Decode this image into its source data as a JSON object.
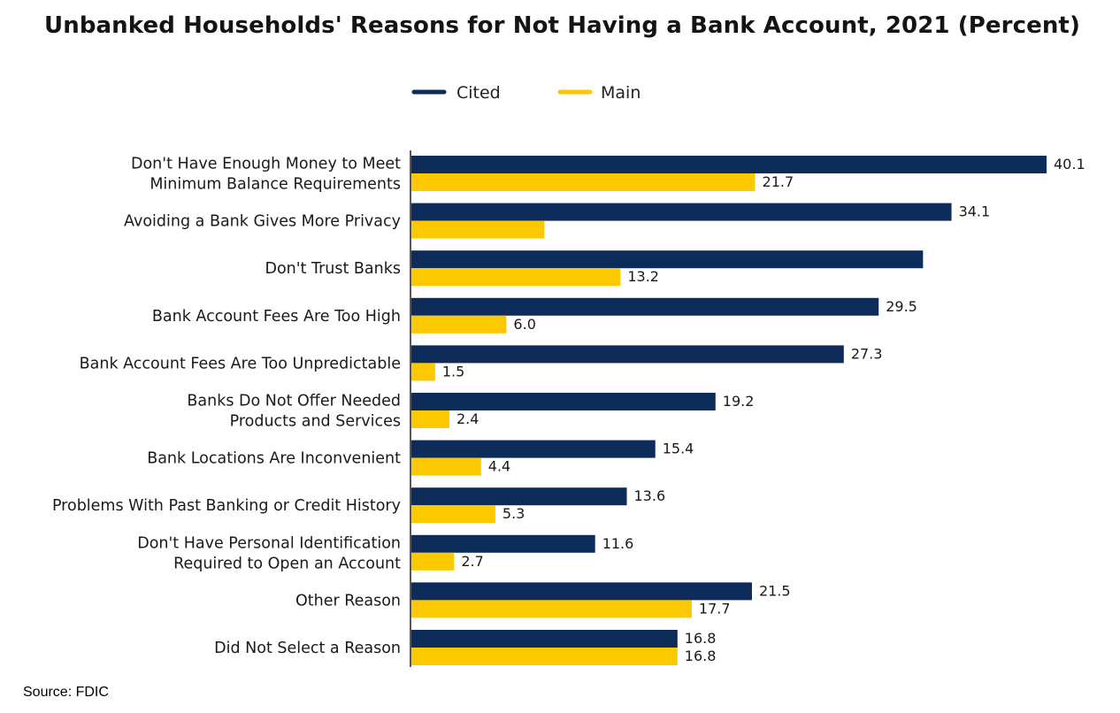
{
  "chart_data": {
    "type": "bar",
    "orientation": "horizontal",
    "title": "Unbanked Households' Reasons for Not Having a Bank Account, 2021 (Percent)",
    "categories": [
      [
        "Don't Have Enough Money to Meet",
        "Minimum Balance Requirements"
      ],
      [
        "Avoiding a Bank Gives More Privacy"
      ],
      [
        "Don't Trust Banks"
      ],
      [
        "Bank Account Fees Are Too High"
      ],
      [
        "Bank Account Fees Are Too Unpredictable"
      ],
      [
        "Banks Do Not Offer Needed",
        "Products and Services"
      ],
      [
        "Bank Locations Are Inconvenient"
      ],
      [
        "Problems With Past Banking or Credit History"
      ],
      [
        "Don't Have Personal Identification",
        "Required to Open an Account"
      ],
      [
        "Other Reason"
      ],
      [
        "Did Not Select a Reason"
      ]
    ],
    "series": [
      {
        "name": "Cited",
        "color": "#0d2c5a",
        "values": [
          40.1,
          34.1,
          32.3,
          29.5,
          27.3,
          19.2,
          15.4,
          13.6,
          11.6,
          21.5,
          16.8
        ],
        "labels": [
          "40.1",
          "34.1",
          "",
          "29.5",
          "27.3",
          "19.2",
          "15.4",
          "13.6",
          "11.6",
          "21.5",
          "16.8"
        ]
      },
      {
        "name": "Main",
        "color": "#fcc800",
        "values": [
          21.7,
          8.4,
          13.2,
          6.0,
          1.5,
          2.4,
          4.4,
          5.3,
          2.7,
          17.7,
          16.8
        ],
        "labels": [
          "21.7",
          "",
          "13.2",
          "6.0",
          "1.5",
          "2.4",
          "4.4",
          "5.3",
          "2.7",
          "17.7",
          "16.8"
        ]
      }
    ],
    "xlim": [
      0,
      40.1
    ],
    "grid": false,
    "legend_position": "top-center"
  },
  "source": "Source: FDIC"
}
